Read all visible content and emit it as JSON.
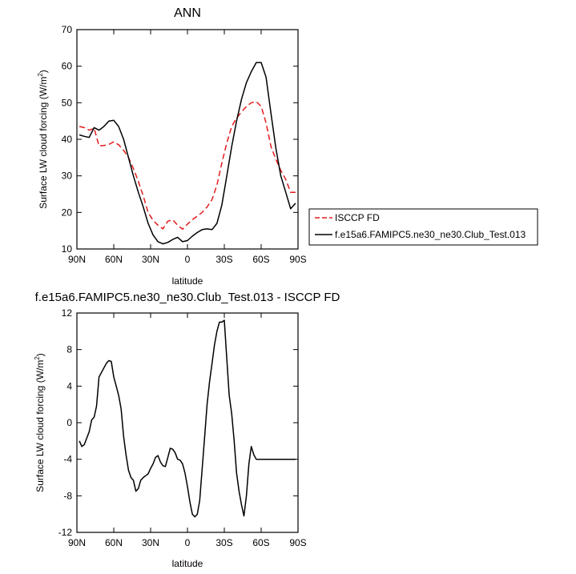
{
  "chart_data": [
    {
      "type": "line",
      "title": "ANN",
      "xlabel": "latitude",
      "ylabel": "Surface LW cloud forcing (W/m2)",
      "ylabel_main": "Surface LW cloud forcing (W/m",
      "ylabel_sup": "2",
      "ylabel_close": ")",
      "xlim": [
        90,
        -90
      ],
      "ylim": [
        10,
        70
      ],
      "x_ticks": [
        {
          "value": 90,
          "label": "90N"
        },
        {
          "value": 60,
          "label": "60N"
        },
        {
          "value": 30,
          "label": "30N"
        },
        {
          "value": 0,
          "label": "0"
        },
        {
          "value": -30,
          "label": "30S"
        },
        {
          "value": -60,
          "label": "60S"
        },
        {
          "value": -90,
          "label": "90S"
        }
      ],
      "y_ticks": [
        10,
        20,
        30,
        40,
        50,
        60,
        70
      ],
      "legend_position": "right",
      "series": [
        {
          "name": "ISCCP FD",
          "color": "#e41a1c",
          "dash": "dashed",
          "x": [
            88,
            84,
            80,
            76,
            72,
            68,
            64,
            60,
            56,
            52,
            48,
            44,
            40,
            36,
            32,
            28,
            24,
            20,
            16,
            12,
            8,
            4,
            0,
            -4,
            -8,
            -12,
            -16,
            -20,
            -24,
            -28,
            -32,
            -36,
            -40,
            -44,
            -48,
            -52,
            -56,
            -60,
            -64,
            -68,
            -72,
            -76,
            -80,
            -84,
            -88
          ],
          "y": [
            43.5,
            43.2,
            42.5,
            43.0,
            38.2,
            38.3,
            38.6,
            39.3,
            38.5,
            37.0,
            35.0,
            32.0,
            28.5,
            24.5,
            20.0,
            17.8,
            16.5,
            15.5,
            17.6,
            18.0,
            16.5,
            15.4,
            16.8,
            18.0,
            19.0,
            20.0,
            21.5,
            23.5,
            27.5,
            33.5,
            39.0,
            43.5,
            45.8,
            47.5,
            49.0,
            50.0,
            50.3,
            49.0,
            44.5,
            38.0,
            34.5,
            31.5,
            29.0,
            25.5,
            25.5
          ]
        },
        {
          "name": "f.e15a6.FAMIPC5.ne30_ne30.Club_Test.013",
          "color": "#000000",
          "dash": "solid",
          "x": [
            88,
            84,
            80,
            76,
            72,
            68,
            64,
            60,
            56,
            52,
            48,
            44,
            40,
            36,
            32,
            28,
            24,
            20,
            16,
            12,
            8,
            4,
            0,
            -4,
            -8,
            -12,
            -16,
            -20,
            -24,
            -28,
            -32,
            -36,
            -40,
            -44,
            -48,
            -52,
            -56,
            -60,
            -64,
            -68,
            -72,
            -76,
            -80,
            -84,
            -88
          ],
          "y": [
            41.2,
            40.8,
            40.5,
            43.2,
            42.5,
            43.5,
            45.0,
            45.2,
            43.5,
            40.0,
            35.0,
            30.0,
            25.5,
            21.5,
            17.0,
            13.8,
            12.0,
            11.4,
            11.8,
            12.6,
            13.2,
            12.0,
            12.3,
            13.5,
            14.5,
            15.3,
            15.5,
            15.3,
            17.0,
            22.0,
            30.0,
            38.0,
            45.0,
            51.0,
            55.5,
            58.5,
            61.0,
            61.0,
            57.0,
            47.0,
            37.5,
            30.0,
            25.5,
            21.0,
            22.5
          ]
        }
      ]
    },
    {
      "type": "line",
      "title": "f.e15a6.FAMIPC5.ne30_ne30.Club_Test.013 - ISCCP FD",
      "xlabel": "latitude",
      "ylabel": "Surface LW cloud forcing (W/m2)",
      "ylabel_main": "Surface LW cloud forcing (W/m",
      "ylabel_sup": "2",
      "ylabel_close": ")",
      "xlim": [
        90,
        -90
      ],
      "ylim": [
        -12,
        12
      ],
      "x_ticks": [
        {
          "value": 90,
          "label": "90N"
        },
        {
          "value": 60,
          "label": "60N"
        },
        {
          "value": 30,
          "label": "30N"
        },
        {
          "value": 0,
          "label": "0"
        },
        {
          "value": -30,
          "label": "30S"
        },
        {
          "value": -60,
          "label": "60S"
        },
        {
          "value": -90,
          "label": "90S"
        }
      ],
      "y_ticks": [
        -12,
        -8,
        -4,
        0,
        4,
        8,
        12
      ],
      "series": [
        {
          "color": "#000000",
          "dash": "solid",
          "x": [
            88,
            86,
            84,
            80,
            78,
            76,
            74,
            72,
            70,
            66,
            64,
            62,
            60,
            58,
            56,
            54,
            52,
            50,
            48,
            46,
            44,
            42,
            40,
            38,
            36,
            34,
            32,
            30,
            28,
            26,
            24,
            22,
            20,
            18,
            16,
            14,
            12,
            10,
            8,
            6,
            4,
            2,
            0,
            -2,
            -4,
            -6,
            -8,
            -10,
            -12,
            -14,
            -16,
            -18,
            -20,
            -22,
            -24,
            -26,
            -28,
            -30,
            -32,
            -34,
            -36,
            -38,
            -40,
            -42,
            -44,
            -46,
            -48,
            -50,
            -52,
            -54,
            -56,
            -58,
            -60,
            -62,
            -64,
            -66,
            -68,
            -70,
            -72,
            -74,
            -76,
            -78,
            -80,
            -82,
            -84,
            -86,
            -88
          ],
          "y": [
            -2.0,
            -2.6,
            -2.4,
            -1.0,
            0.3,
            0.6,
            1.8,
            5.0,
            5.5,
            6.5,
            6.8,
            6.7,
            5.0,
            4.0,
            3.0,
            1.5,
            -1.5,
            -3.5,
            -5.2,
            -6.0,
            -6.3,
            -7.5,
            -7.2,
            -6.3,
            -6.0,
            -5.8,
            -5.6,
            -5.0,
            -4.5,
            -3.8,
            -3.6,
            -4.3,
            -4.7,
            -4.8,
            -3.8,
            -2.8,
            -2.9,
            -3.3,
            -4.0,
            -4.1,
            -4.5,
            -5.5,
            -7.0,
            -8.7,
            -10.0,
            -10.3,
            -10.0,
            -8.5,
            -5.0,
            -1.5,
            2.0,
            4.5,
            6.5,
            8.5,
            10.0,
            11.0,
            11.0,
            11.2,
            7.0,
            3.0,
            1.0,
            -2.0,
            -5.5,
            -7.5,
            -9.0,
            -10.2,
            -8.0,
            -4.5,
            -2.6,
            -3.5,
            -4.0,
            -4.0,
            -4.0,
            -4.0,
            -4.0,
            -4.0,
            -4.0,
            -4.0,
            -4.0,
            -4.0,
            -4.0,
            -4.0,
            -4.0,
            -4.0,
            -4.0,
            -4.0,
            -4.0
          ]
        }
      ]
    }
  ]
}
